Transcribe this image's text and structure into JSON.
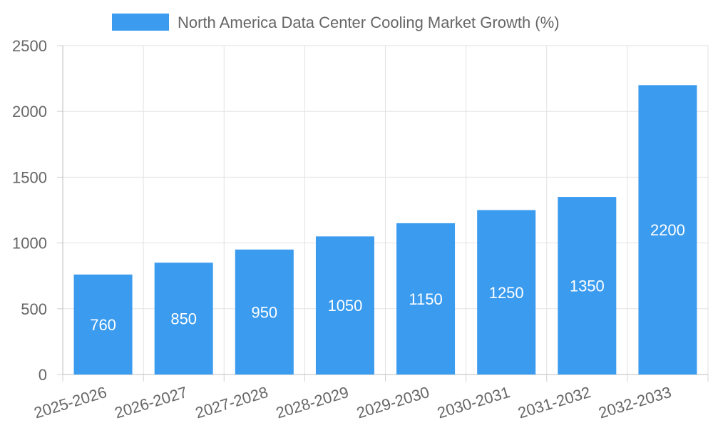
{
  "chart_data": {
    "type": "bar",
    "title": "",
    "xlabel": "",
    "ylabel": "",
    "categories": [
      "2025-2026",
      "2026-2027",
      "2027-2028",
      "2028-2029",
      "2029-2030",
      "2030-2031",
      "2031-2032",
      "2032-2033"
    ],
    "series": [
      {
        "name": "North America Data Center Cooling Market Growth (%)",
        "values": [
          760,
          850,
          950,
          1050,
          1150,
          1250,
          1350,
          2200
        ],
        "color": "#3a9bef"
      }
    ],
    "ylim": [
      0,
      2500
    ],
    "yticks": [
      0,
      500,
      1000,
      1500,
      2000,
      2500
    ],
    "grid": true,
    "legend_position": "top-center",
    "data_labels": true,
    "x_tick_rotation": "tilted"
  }
}
